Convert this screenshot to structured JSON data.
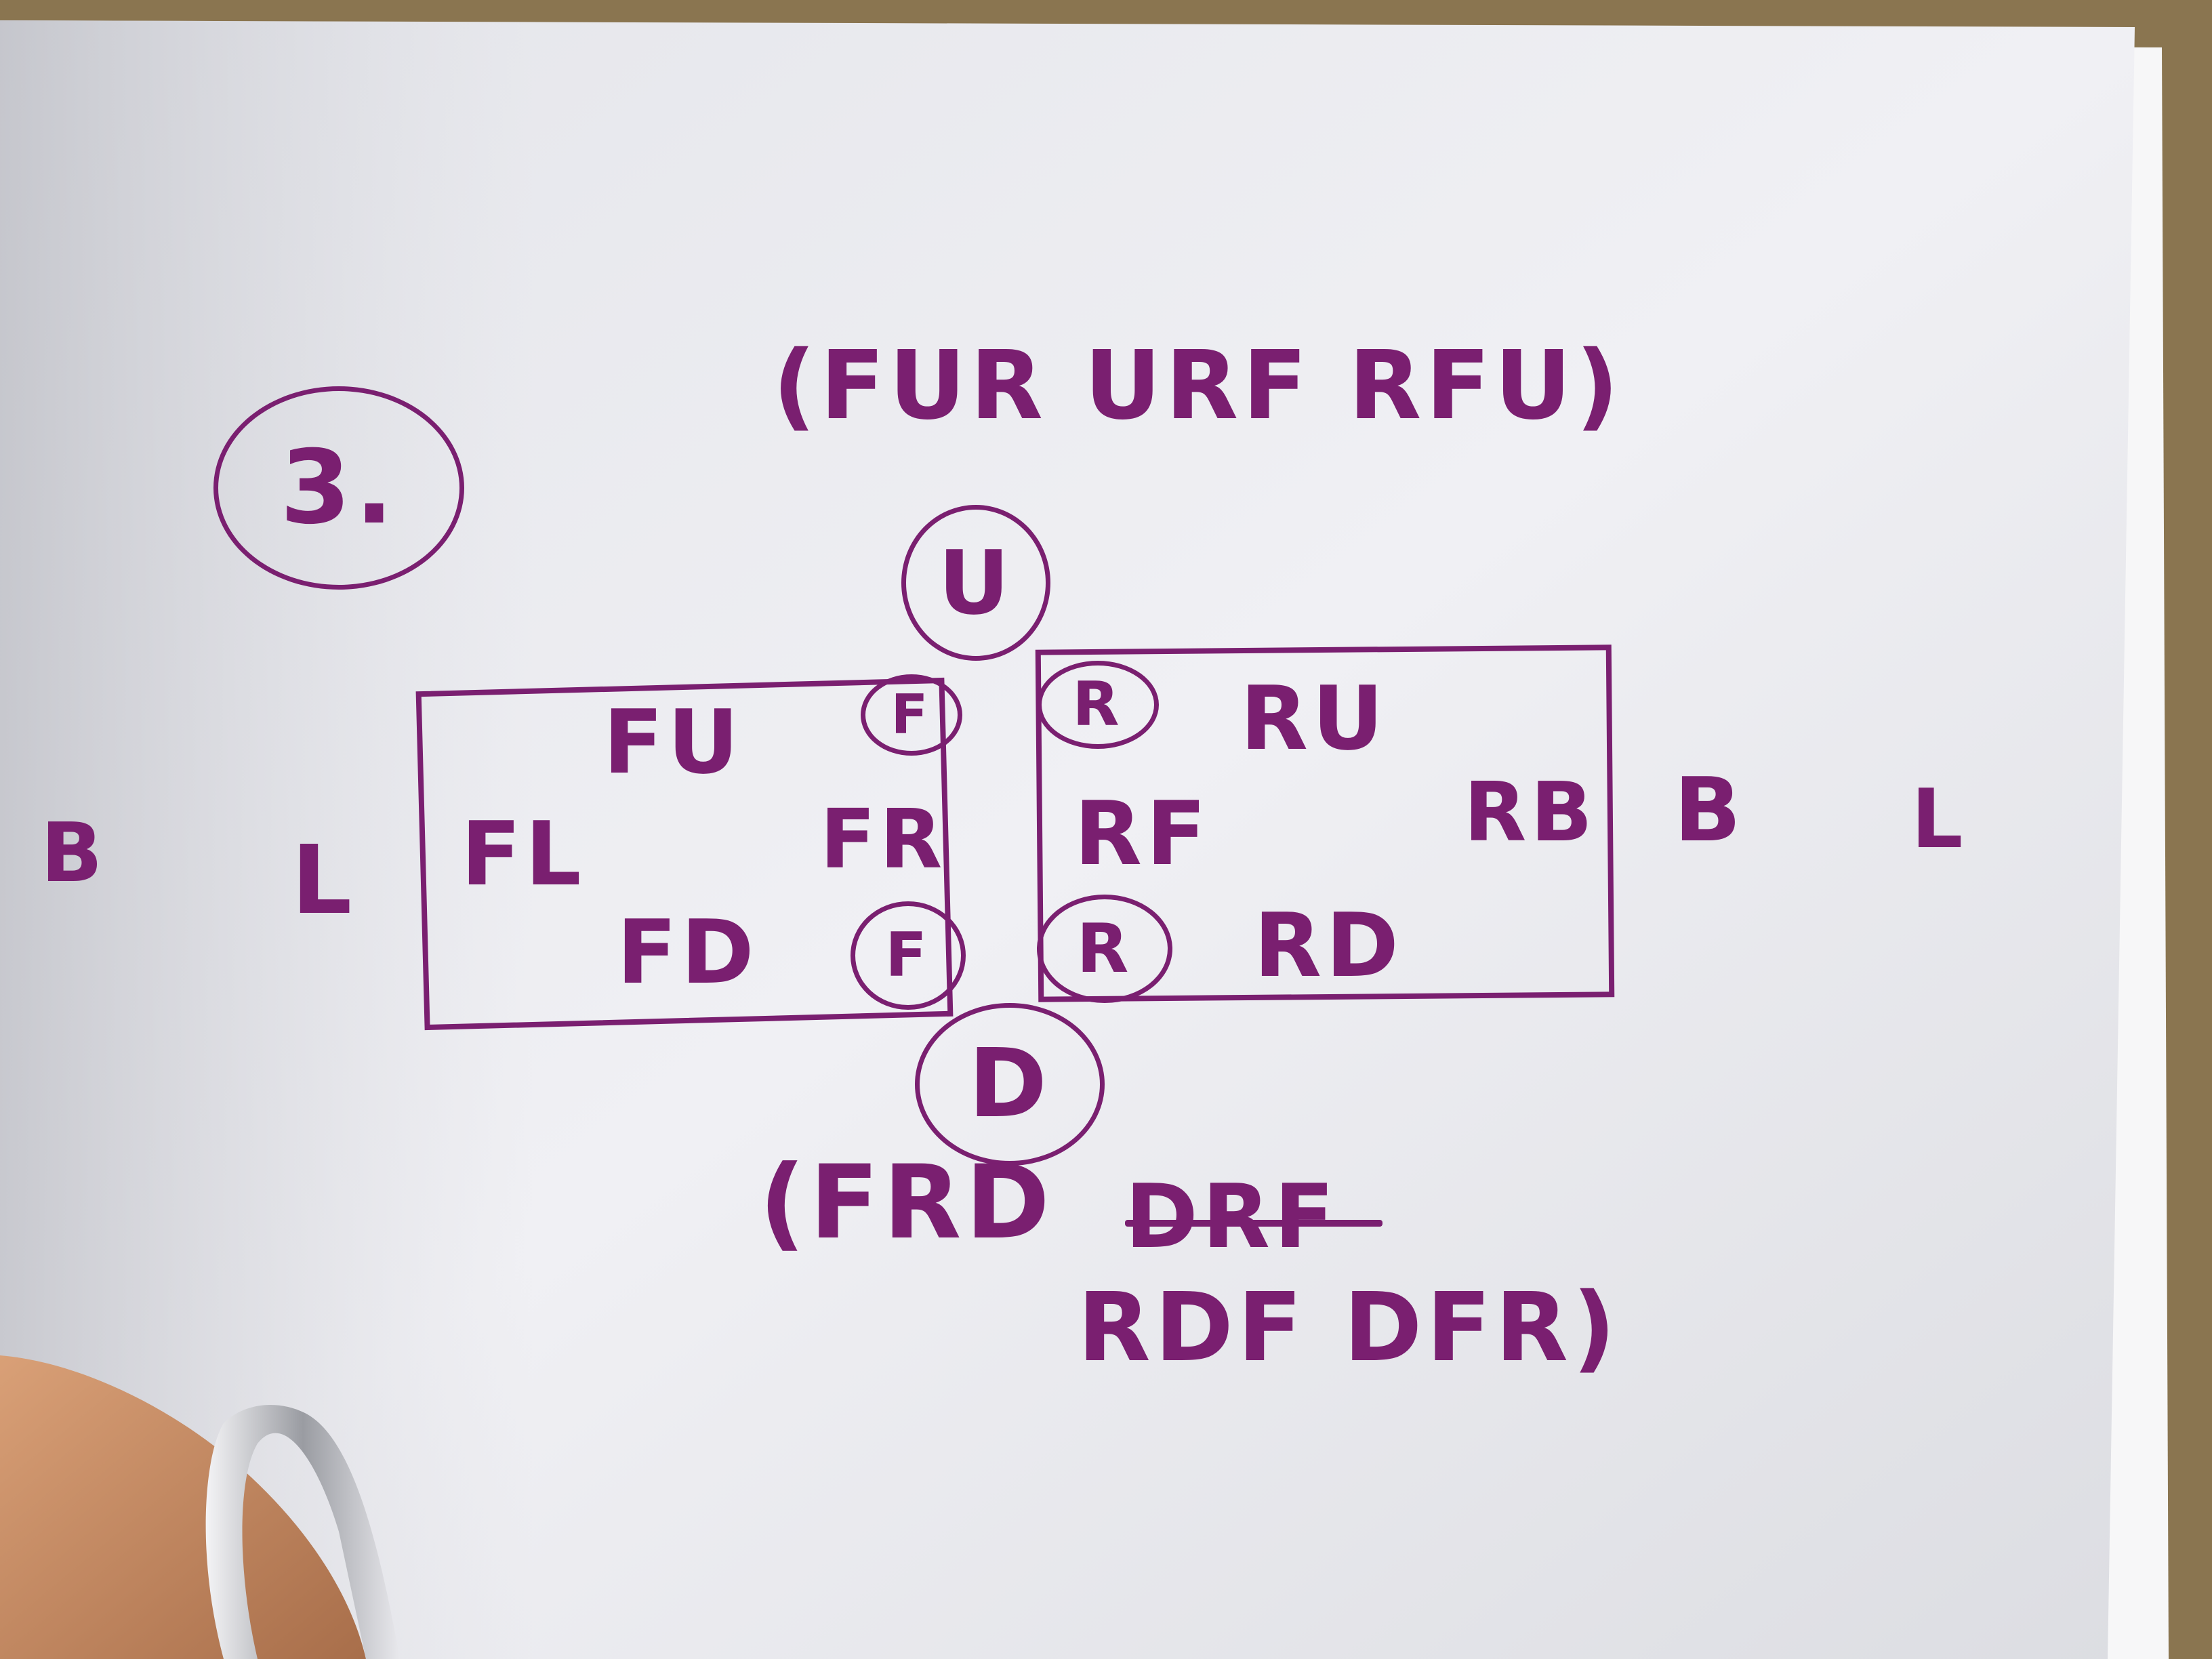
{
  "note": {
    "step_number": "3.",
    "top_cycle": "(FUR URF RFU)",
    "bottom_line_1": "(FRD",
    "bottom_line_1_struck": "DRF",
    "bottom_line_2": "RDF DFR)",
    "top_face": "U",
    "bottom_face": "D",
    "left_outer_back": "B",
    "left_outer_left": "L",
    "right_outer_back": "B",
    "right_outer_left": "L",
    "front_face": {
      "up": "FU",
      "left": "FL",
      "right": "FR",
      "down": "FD",
      "corner_top": "F",
      "corner_bottom": "F"
    },
    "right_face": {
      "up": "RU",
      "front": "RF",
      "back": "RB",
      "down": "RD",
      "corner_top": "R",
      "corner_bottom": "R"
    }
  },
  "colors": {
    "ink": "#7a1f70",
    "paper": "#eeeef2",
    "table": "#8a7550",
    "skin": "#c88c62"
  }
}
